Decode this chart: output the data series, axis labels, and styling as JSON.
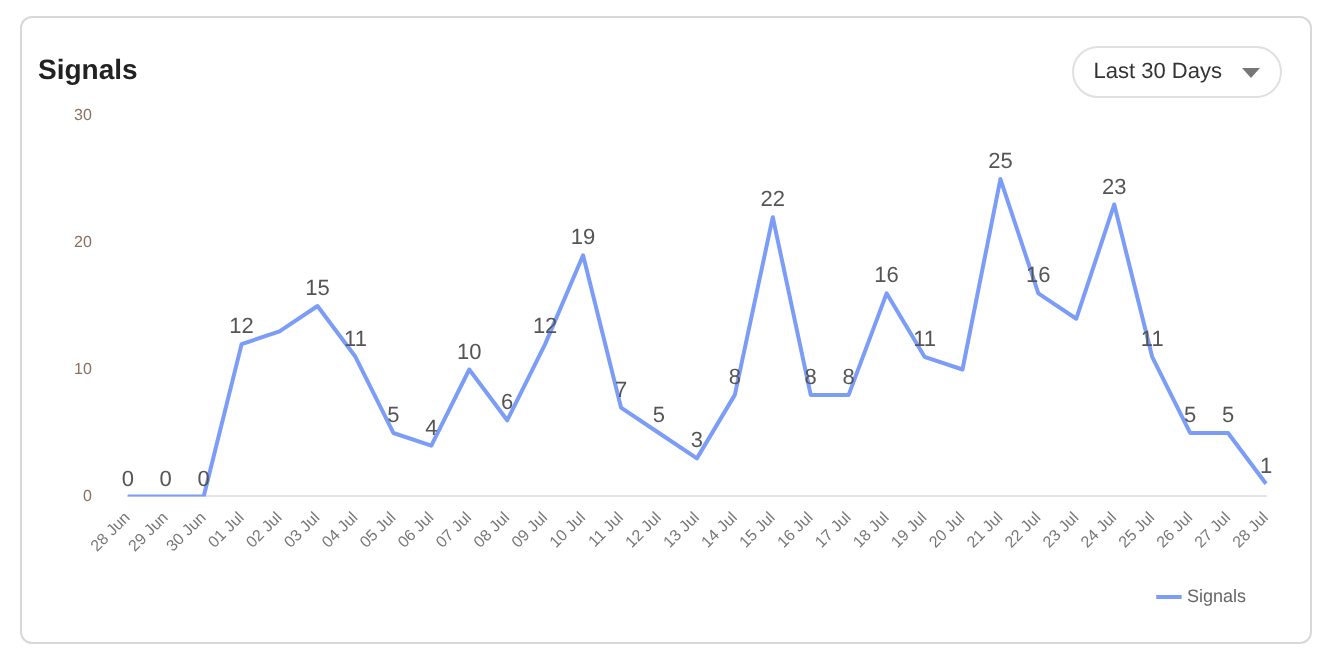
{
  "chart_data": {
    "type": "line",
    "title": "Signals",
    "annotations": [
      "Last 30 Days"
    ],
    "categories": [
      "28 Jun",
      "29 Jun",
      "30 Jun",
      "01 Jul",
      "02 Jul",
      "03 Jul",
      "04 Jul",
      "05 Jul",
      "06 Jul",
      "07 Jul",
      "08 Jul",
      "09 Jul",
      "10 Jul",
      "11 Jul",
      "12 Jul",
      "13 Jul",
      "14 Jul",
      "15 Jul",
      "16 Jul",
      "17 Jul",
      "18 Jul",
      "19 Jul",
      "20 Jul",
      "21 Jul",
      "22 Jul",
      "23 Jul",
      "24 Jul",
      "25 Jul",
      "26 Jul",
      "27 Jul",
      "28 Jul"
    ],
    "series": [
      {
        "name": "Signals",
        "color": "#7b9cf7",
        "values": [
          0,
          0,
          0,
          12,
          13,
          15,
          11,
          5,
          4,
          10,
          6,
          12,
          19,
          7,
          5,
          3,
          8,
          22,
          8,
          8,
          16,
          11,
          10,
          25,
          16,
          14,
          23,
          11,
          5,
          5,
          1
        ],
        "value_labels": [
          "0",
          "0",
          "0",
          "12",
          null,
          "15",
          "11",
          "5",
          "4",
          "10",
          "6",
          "12",
          "19",
          "7",
          "5",
          "3",
          "8",
          "22",
          "8",
          "8",
          "16",
          "11",
          null,
          "25",
          "16",
          null,
          "23",
          "11",
          "5",
          "5",
          "1"
        ]
      }
    ],
    "ylim": [
      0,
      30
    ],
    "yticks": [
      0,
      10,
      20,
      30
    ],
    "grid": false,
    "legend": "bottom right",
    "marker": "none",
    "line_style": "solid"
  }
}
